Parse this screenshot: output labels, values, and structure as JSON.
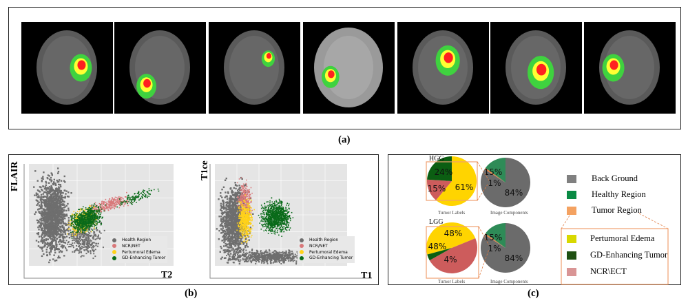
{
  "panel_a": {
    "label": "(a)",
    "image_count": 7
  },
  "panel_b": {
    "label": "(b)",
    "plots": [
      {
        "xlabel": "T2",
        "ylabel": "FLAIR"
      },
      {
        "xlabel": "T1",
        "ylabel": "T1ce"
      }
    ],
    "legend": [
      "Health Region",
      "NCR/NET",
      "Pertumoral Edema",
      "GD-Enhancing Tumor"
    ],
    "colors": [
      "#6e6e6e",
      "#d9787a",
      "#ffd21a",
      "#0a6b1a"
    ]
  },
  "panel_c": {
    "label": "(c)",
    "legend": [
      "Back Ground",
      "Healthy Region",
      "Tumor Region",
      "Pertumoral Edema",
      "GD-Enhancing Tumor",
      "NCR\\ECT"
    ],
    "legend_colors": [
      "#808080",
      "#0a8a44",
      "#f4a261",
      "#d8d800",
      "#1f5012",
      "#d99595"
    ]
  },
  "chart_data": [
    {
      "type": "pie",
      "title": "HGG",
      "xlabel": "Tumor Labels",
      "labels": [
        "Pertumoral Edema",
        "NCR\\ECT",
        "GD-Enhancing Tumor"
      ],
      "values": [
        61,
        15,
        24
      ],
      "value_labels": [
        "61%",
        "15%",
        "24%"
      ],
      "colors": [
        "#ffd400",
        "#cd5c5c",
        "#0b5e12"
      ]
    },
    {
      "type": "pie",
      "title": "",
      "xlabel": "Image Components",
      "labels": [
        "Back Ground",
        "Tumor Region",
        "Healthy Region"
      ],
      "values": [
        84,
        1,
        15
      ],
      "value_labels": [
        "84%",
        "1%",
        "15%"
      ],
      "colors": [
        "#6b6b6b",
        "#f08040",
        "#2e8b57"
      ]
    },
    {
      "type": "pie",
      "title": "LGG",
      "xlabel": "Tumor Labels",
      "labels": [
        "Pertumoral Edema",
        "NCR\\ECT",
        "GD-Enhancing Tumor"
      ],
      "values": [
        48,
        48,
        4
      ],
      "value_labels": [
        "48%",
        "48%",
        "4%"
      ],
      "colors": [
        "#ffd400",
        "#cd5c5c",
        "#0b5e12"
      ]
    },
    {
      "type": "pie",
      "title": "",
      "xlabel": "Image Components",
      "labels": [
        "Back Ground",
        "Tumor Region",
        "Healthy Region"
      ],
      "values": [
        84,
        1,
        15
      ],
      "value_labels": [
        "84%",
        "1%",
        "15%"
      ],
      "colors": [
        "#6b6b6b",
        "#f08040",
        "#2e8b57"
      ]
    }
  ]
}
